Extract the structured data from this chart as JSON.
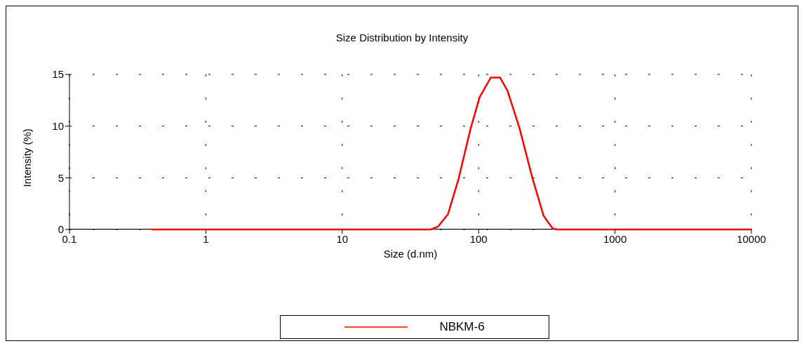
{
  "chart_data": {
    "type": "line",
    "title": "Size Distribution by Intensity",
    "xlabel": "Size (d.nm)",
    "ylabel": "Intensity (%)",
    "log": "x",
    "xlim": [
      0.1,
      10000
    ],
    "xticks": [
      0.1,
      1,
      10,
      100,
      1000,
      10000
    ],
    "ylim": [
      0,
      15
    ],
    "yticks": [
      0,
      5,
      10,
      15
    ],
    "grid": true,
    "legend": "bottom",
    "marker": "none",
    "line_style": "solid",
    "series": [
      {
        "name": "NBKM-6",
        "color": "#ff0000",
        "x": [
          0.4,
          1,
          10,
          40,
          44.6,
          50.6,
          59.7,
          71.3,
          87.5,
          101.8,
          123,
          143.5,
          163,
          199.5,
          247.6,
          300,
          349,
          377,
          1000,
          10000
        ],
        "values": [
          0,
          0,
          0,
          0,
          0,
          0.3,
          1.5,
          4.9,
          9.8,
          12.8,
          14.7,
          14.7,
          13.4,
          9.8,
          5.0,
          1.3,
          0.1,
          0,
          0,
          0
        ]
      }
    ]
  }
}
